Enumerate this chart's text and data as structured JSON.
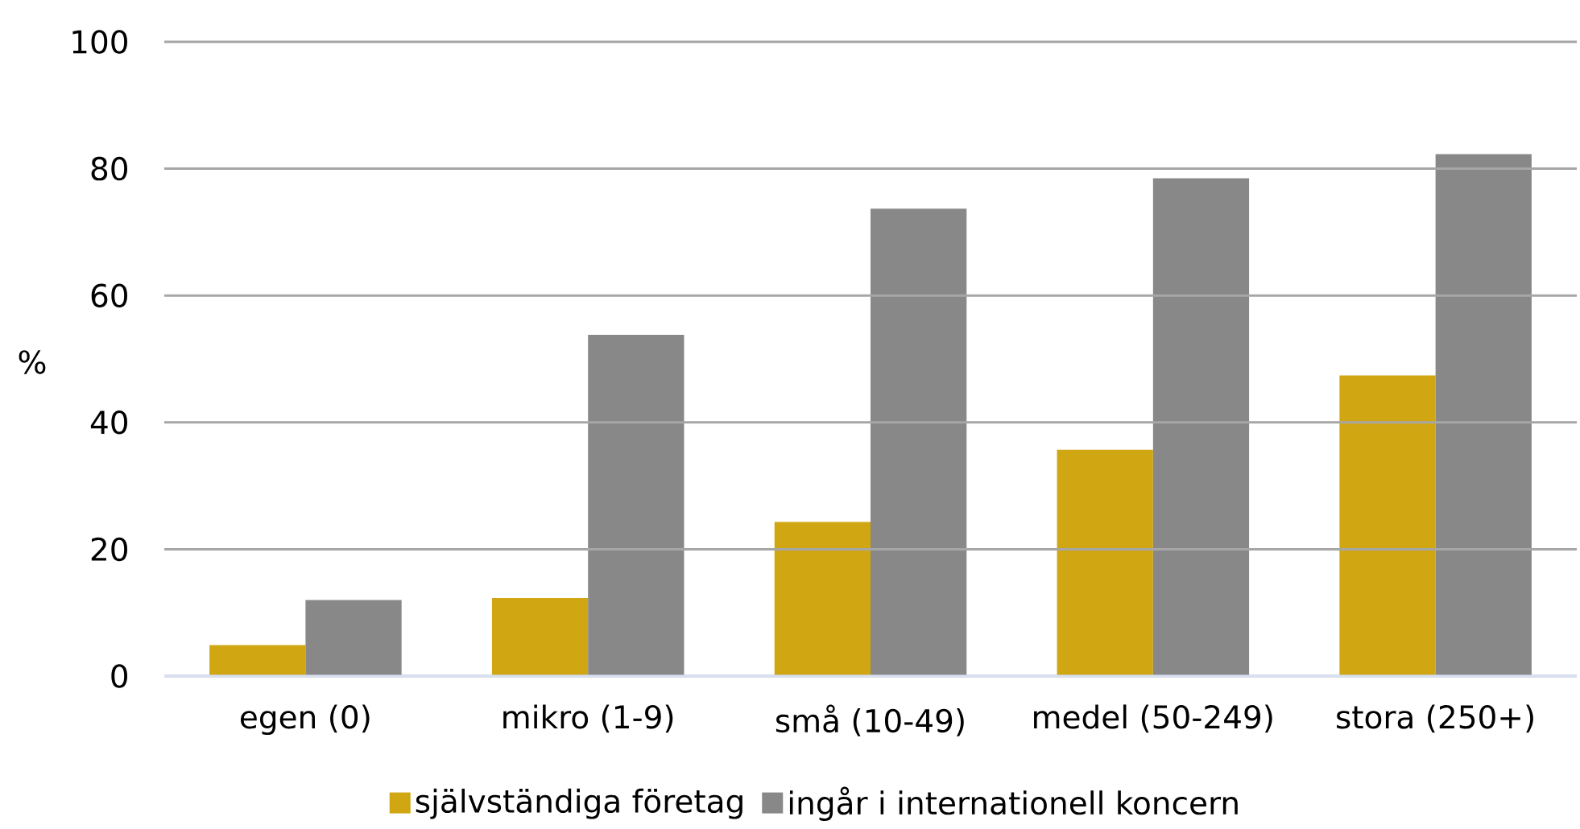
{
  "chart_data": {
    "type": "bar",
    "ylabel": "%",
    "categories": [
      "egen (0)",
      "mikro (1-9)",
      "små (10-49)",
      "medel (50-249)",
      "stora (250+)"
    ],
    "series": [
      {
        "name": "självständiga företag",
        "color": "#d0a712",
        "values": [
          4.9,
          12.3,
          24.3,
          35.7,
          47.4
        ]
      },
      {
        "name": "ingår i internationell koncern",
        "color": "#888888",
        "values": [
          12.0,
          53.8,
          73.7,
          78.5,
          82.3
        ]
      }
    ],
    "ylim": [
      0,
      100
    ],
    "yticks": [
      0,
      20,
      40,
      60,
      80,
      100
    ],
    "grid": "y",
    "legend": "bottom"
  }
}
